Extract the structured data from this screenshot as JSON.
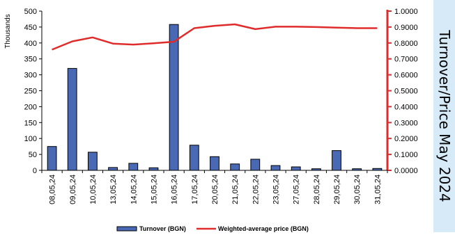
{
  "side_title": "Turnover/Price  May 2024",
  "colors": {
    "bar": "#4a69b5",
    "bar_outline": "#000000",
    "line": "#e02b2b",
    "right_axis": "#e02b2b",
    "panel": "#d6eaf8"
  },
  "chart_data": {
    "type": "bar",
    "title": "",
    "categories": [
      "08,05,24",
      "09,05,24",
      "10,05,24",
      "13,05,24",
      "14,05,24",
      "15,05,24",
      "16,05,24",
      "17,05,24",
      "20,05,24",
      "21,05,24",
      "22,05,24",
      "23,05,24",
      "27,05,24",
      "28,05,24",
      "29,05,24",
      "30,05,24",
      "31,05,24"
    ],
    "ylabel": "Thousands",
    "ylim": [
      0,
      500
    ],
    "y_ticks": [
      0,
      50,
      100,
      150,
      200,
      250,
      300,
      350,
      400,
      450,
      500
    ],
    "y2lim": [
      0,
      1
    ],
    "y2_ticks": [
      "0.0000",
      "0.1000",
      "0.2000",
      "0.3000",
      "0.4000",
      "0.5000",
      "0.6000",
      "0.7000",
      "0.8000",
      "0.9000",
      "1.0000"
    ],
    "grid": false,
    "legend_position": "bottom",
    "series": [
      {
        "name": "Turnover (BGN)",
        "type": "bar",
        "axis": "left",
        "values": [
          75,
          320,
          57,
          9,
          22,
          8,
          458,
          79,
          43,
          20,
          35,
          15,
          11,
          5,
          62,
          5,
          6
        ]
      },
      {
        "name": "Weighted-average price (BGN)",
        "type": "line",
        "axis": "right",
        "values": [
          0.758,
          0.81,
          0.835,
          0.796,
          0.79,
          0.798,
          0.808,
          0.893,
          0.908,
          0.917,
          0.887,
          0.902,
          0.902,
          0.9,
          0.896,
          0.893,
          0.893
        ]
      }
    ]
  }
}
